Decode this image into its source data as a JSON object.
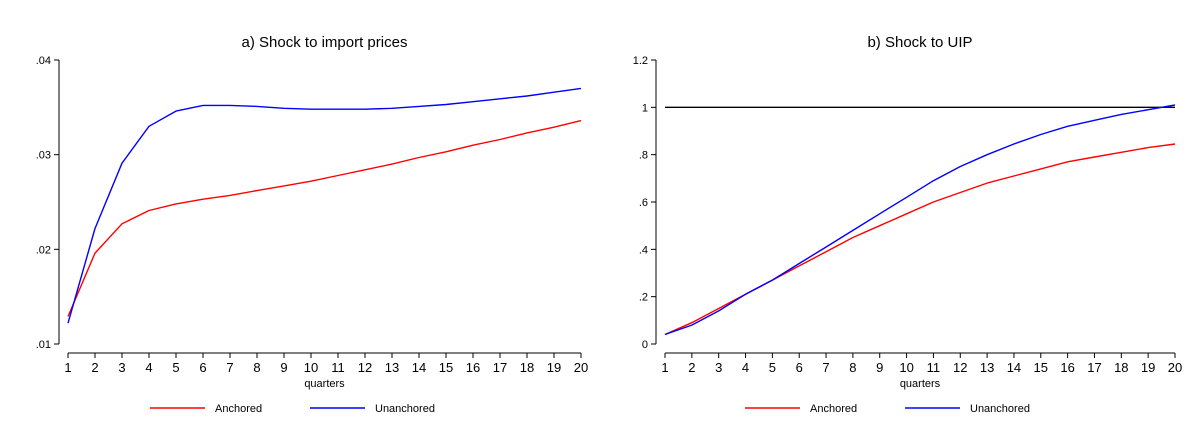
{
  "chart_data": [
    {
      "type": "line",
      "title": "a) Shock to import prices",
      "xlabel": "quarters",
      "ylabel": "",
      "x": [
        1,
        2,
        3,
        4,
        5,
        6,
        7,
        8,
        9,
        10,
        11,
        12,
        13,
        14,
        15,
        16,
        17,
        18,
        19,
        20
      ],
      "xlim": [
        1,
        20
      ],
      "ylim": [
        0.01,
        0.04
      ],
      "yticks": [
        0.01,
        0.02,
        0.03,
        0.04
      ],
      "ytick_labels": [
        ".01",
        ".02",
        ".03",
        ".04"
      ],
      "xtick_labels": [
        "1",
        "2",
        "3",
        "4",
        "5",
        "6",
        "7",
        "8",
        "9",
        "10",
        "11",
        "12",
        "13",
        "14",
        "15",
        "16",
        "17",
        "18",
        "19",
        "20"
      ],
      "grid": false,
      "legend": "bottom",
      "series": [
        {
          "name": "Anchored",
          "color": "#ff0000",
          "values": [
            0.0129,
            0.0196,
            0.0227,
            0.0241,
            0.0248,
            0.0253,
            0.0257,
            0.0262,
            0.0267,
            0.0272,
            0.0278,
            0.0284,
            0.029,
            0.0297,
            0.0303,
            0.031,
            0.0316,
            0.0323,
            0.0329,
            0.0336
          ]
        },
        {
          "name": "Unanchored",
          "color": "#0000ff",
          "values": [
            0.0122,
            0.0222,
            0.0291,
            0.033,
            0.0346,
            0.0352,
            0.0352,
            0.0351,
            0.0349,
            0.0348,
            0.0348,
            0.0348,
            0.0349,
            0.0351,
            0.0353,
            0.0356,
            0.0359,
            0.0362,
            0.0366,
            0.037
          ]
        }
      ]
    },
    {
      "type": "line",
      "title": "b) Shock to UIP",
      "xlabel": "quarters",
      "ylabel": "",
      "x": [
        1,
        2,
        3,
        4,
        5,
        6,
        7,
        8,
        9,
        10,
        11,
        12,
        13,
        14,
        15,
        16,
        17,
        18,
        19,
        20
      ],
      "xlim": [
        1,
        20
      ],
      "ylim": [
        0,
        1.2
      ],
      "yticks": [
        0,
        0.2,
        0.4,
        0.6,
        0.8,
        1,
        1.2
      ],
      "ytick_labels": [
        "0",
        ".2",
        ".4",
        ".6",
        ".8",
        "1",
        "1.2"
      ],
      "xtick_labels": [
        "1",
        "2",
        "3",
        "4",
        "5",
        "6",
        "7",
        "8",
        "9",
        "10",
        "11",
        "12",
        "13",
        "14",
        "15",
        "16",
        "17",
        "18",
        "19",
        "20"
      ],
      "grid": false,
      "legend": "bottom",
      "reference_line": {
        "y": 1,
        "color": "#000000"
      },
      "series": [
        {
          "name": "Anchored",
          "color": "#ff0000",
          "values": [
            0.04,
            0.09,
            0.15,
            0.21,
            0.27,
            0.33,
            0.39,
            0.45,
            0.5,
            0.55,
            0.6,
            0.64,
            0.68,
            0.71,
            0.74,
            0.77,
            0.79,
            0.81,
            0.83,
            0.845
          ]
        },
        {
          "name": "Unanchored",
          "color": "#0000ff",
          "values": [
            0.04,
            0.08,
            0.14,
            0.21,
            0.27,
            0.34,
            0.41,
            0.48,
            0.55,
            0.62,
            0.69,
            0.75,
            0.8,
            0.845,
            0.885,
            0.92,
            0.945,
            0.97,
            0.99,
            1.01
          ]
        }
      ]
    }
  ]
}
